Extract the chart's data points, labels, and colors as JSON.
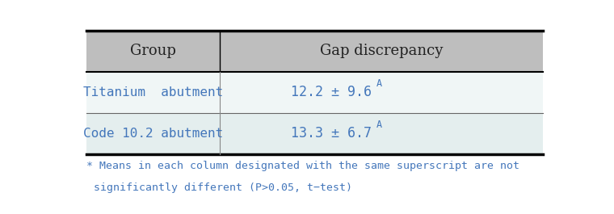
{
  "header": [
    "Group",
    "Gap discrepancy"
  ],
  "rows": [
    [
      "Titanium  abutment",
      "12.2 ± 9.6"
    ],
    [
      "Code 10.2 abutment",
      "13.3 ± 6.7"
    ]
  ],
  "superscripts": [
    "A",
    "A"
  ],
  "footnote_line1": "* Means in each column designated with the same superscript are not",
  "footnote_line2": "  significantly different (P>0.05, t−test)",
  "header_bg": "#bebebe",
  "row1_bg": "#f0f6f6",
  "row2_bg": "#e4eeee",
  "header_text_color": "#222222",
  "data_text_color": "#4477bb",
  "footnote_color": "#4477bb",
  "fig_width": 7.6,
  "fig_height": 2.65,
  "dpi": 100
}
